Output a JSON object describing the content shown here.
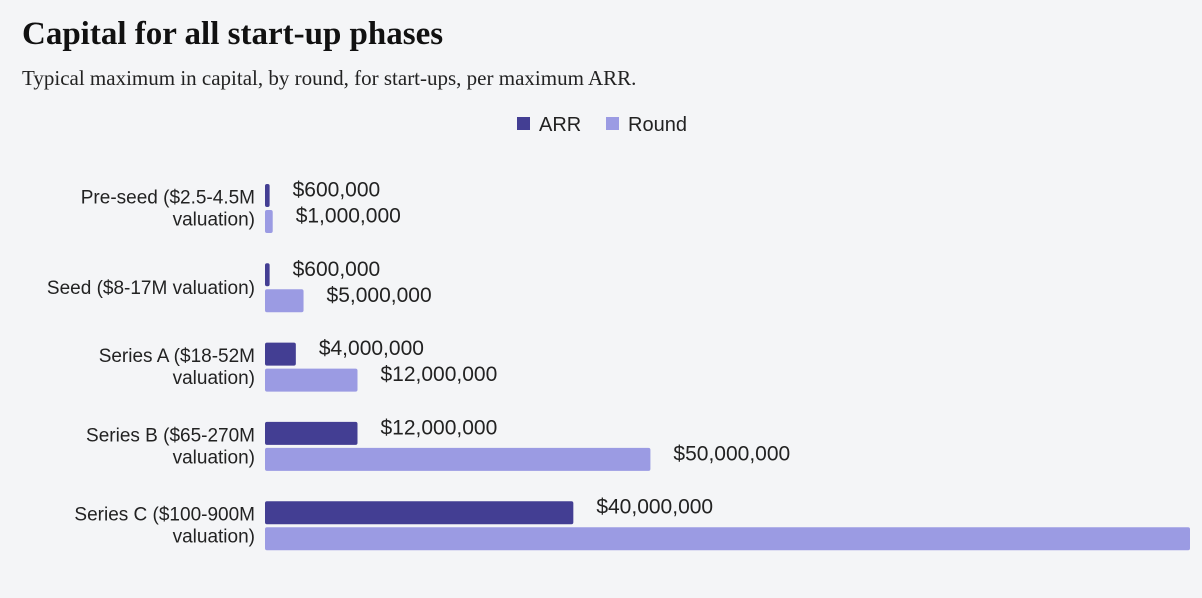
{
  "header": {
    "title": "Capital for all start-up phases",
    "subtitle": "Typical maximum in capital, by round, for start-ups, per maximum ARR."
  },
  "chart_data": {
    "type": "bar",
    "orientation": "horizontal",
    "title": "Capital for all start-up phases",
    "subtitle": "Typical maximum in capital, by round, for start-ups, per maximum ARR.",
    "categories": [
      "Pre-seed ($2.5-4.5M valuation)",
      "Seed ($8-17M valuation)",
      "Series A ($18-52M valuation)",
      "Series B ($65-270M valuation)",
      "Series C ($100-900M valuation)"
    ],
    "category_label_lines": [
      [
        "Pre-seed ($2.5-4.5M",
        "valuation)"
      ],
      [
        "Seed ($8-17M valuation)"
      ],
      [
        "Series A ($18-52M",
        "valuation)"
      ],
      [
        "Series B ($65-270M",
        "valuation)"
      ],
      [
        "Series C ($100-900M",
        "valuation)"
      ]
    ],
    "series": [
      {
        "name": "ARR",
        "color": "#433e93",
        "values": [
          600000,
          600000,
          4000000,
          12000000,
          40000000
        ],
        "labels": [
          "$600,000",
          "$600,000",
          "$4,000,000",
          "$12,000,000",
          "$40,000,000"
        ]
      },
      {
        "name": "Round",
        "color": "#9b9be3",
        "values": [
          1000000,
          5000000,
          12000000,
          50000000,
          120000000
        ],
        "labels": [
          "$1,000,000",
          "$5,000,000",
          "$12,000,000",
          "$50,000,000",
          ""
        ]
      }
    ],
    "xlim": [
      0,
      120000000
    ],
    "grid": false,
    "legend_position": "top"
  }
}
